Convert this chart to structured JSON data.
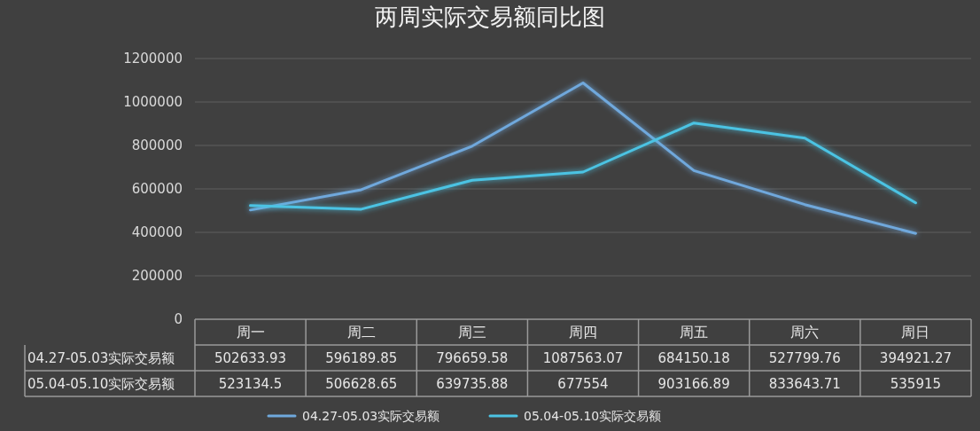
{
  "chart_data": {
    "type": "line",
    "title": "两周实际交易额同比图",
    "categories": [
      "周一",
      "周二",
      "周三",
      "周四",
      "周五",
      "周六",
      "周日"
    ],
    "series": [
      {
        "name": "04.27-05.03实际交易额",
        "color": "#6fa8dc",
        "values": [
          502633.93,
          596189.85,
          796659.58,
          1087563.07,
          684150.18,
          527799.76,
          394921.27
        ]
      },
      {
        "name": "05.04-05.10实际交易额",
        "color": "#4cc3e3",
        "values": [
          523134.5,
          506628.65,
          639735.88,
          677554,
          903166.89,
          833643.71,
          535915
        ]
      }
    ],
    "ylim": [
      0,
      1200000
    ],
    "yticks": [
      0,
      200000,
      400000,
      600000,
      800000,
      1000000,
      1200000
    ],
    "grid": "y",
    "legend": "bottom",
    "data_labels": true,
    "marker": "none",
    "line_style": "solid"
  }
}
